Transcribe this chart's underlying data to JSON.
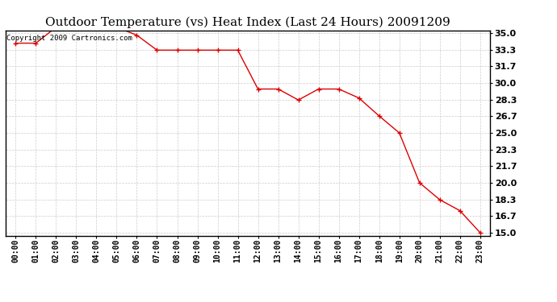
{
  "title": "Outdoor Temperature (vs) Heat Index (Last 24 Hours) 20091209",
  "copyright": "Copyright 2009 Cartronics.com",
  "x_labels": [
    "00:00",
    "01:00",
    "02:00",
    "03:00",
    "04:00",
    "05:00",
    "06:00",
    "07:00",
    "08:00",
    "09:00",
    "10:00",
    "11:00",
    "12:00",
    "13:00",
    "14:00",
    "15:00",
    "16:00",
    "17:00",
    "18:00",
    "19:00",
    "20:00",
    "21:00",
    "22:00",
    "23:00"
  ],
  "y_values": [
    34.0,
    34.0,
    35.6,
    35.6,
    35.6,
    35.6,
    34.8,
    33.3,
    33.3,
    33.3,
    33.3,
    33.3,
    29.4,
    29.4,
    28.3,
    29.4,
    29.4,
    28.5,
    26.7,
    25.0,
    20.0,
    18.3,
    17.2,
    15.0
  ],
  "y_min": 15.0,
  "y_max": 35.0,
  "y_ticks": [
    15.0,
    16.7,
    18.3,
    20.0,
    21.7,
    23.3,
    25.0,
    26.7,
    28.3,
    30.0,
    31.7,
    33.3,
    35.0
  ],
  "line_color": "#dd0000",
  "marker": "+",
  "marker_size": 4,
  "marker_edgewidth": 1.0,
  "line_width": 1.0,
  "bg_color": "#ffffff",
  "grid_color": "#cccccc",
  "title_fontsize": 11,
  "axis_fontsize": 7,
  "ytick_fontsize": 8,
  "copyright_fontsize": 6.5
}
